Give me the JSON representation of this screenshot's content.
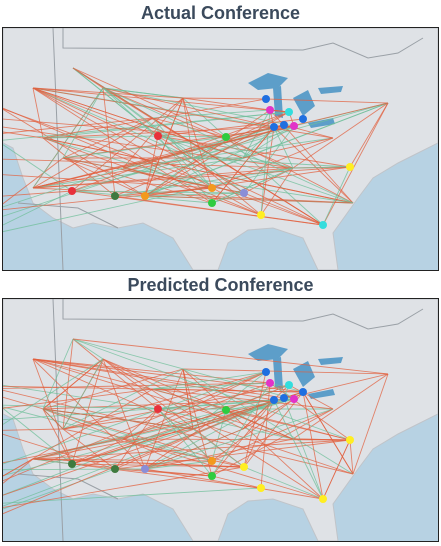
{
  "panels": [
    {
      "title": "Actual Conference"
    },
    {
      "title": "Predicted Conference"
    }
  ]
}
